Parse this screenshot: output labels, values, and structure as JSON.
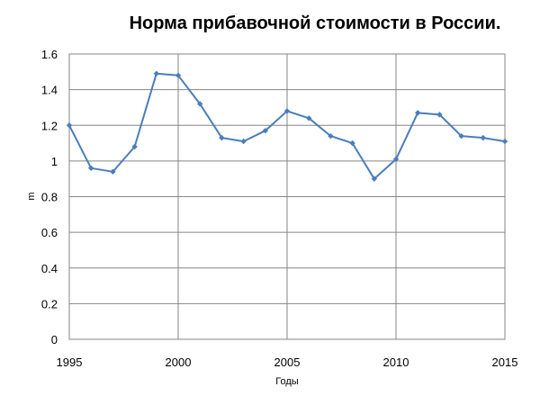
{
  "chart_data": {
    "type": "line",
    "title": "Норма прибавочной стоимости в России.",
    "xlabel": "Годы",
    "ylabel": "m",
    "xlim": [
      1995,
      2015
    ],
    "ylim": [
      0,
      1.6
    ],
    "x_ticks": [
      1995,
      2000,
      2005,
      2010,
      2015
    ],
    "y_ticks": [
      "0",
      "0.2",
      "0.4",
      "0.6",
      "0.8",
      "1",
      "1.2",
      "1.4",
      "1.6"
    ],
    "grid": true,
    "series": [
      {
        "color": "#4a7ebb",
        "x": [
          1995,
          1996,
          1997,
          1998,
          1999,
          2000,
          2001,
          2002,
          2003,
          2004,
          2005,
          2006,
          2007,
          2008,
          2009,
          2010,
          2011,
          2012,
          2013,
          2014,
          2015
        ],
        "y": [
          1.2,
          0.96,
          0.94,
          1.08,
          1.49,
          1.48,
          1.32,
          1.13,
          1.11,
          1.17,
          1.28,
          1.24,
          1.14,
          1.1,
          0.9,
          1.01,
          1.27,
          1.26,
          1.14,
          1.13,
          1.11
        ]
      }
    ]
  }
}
